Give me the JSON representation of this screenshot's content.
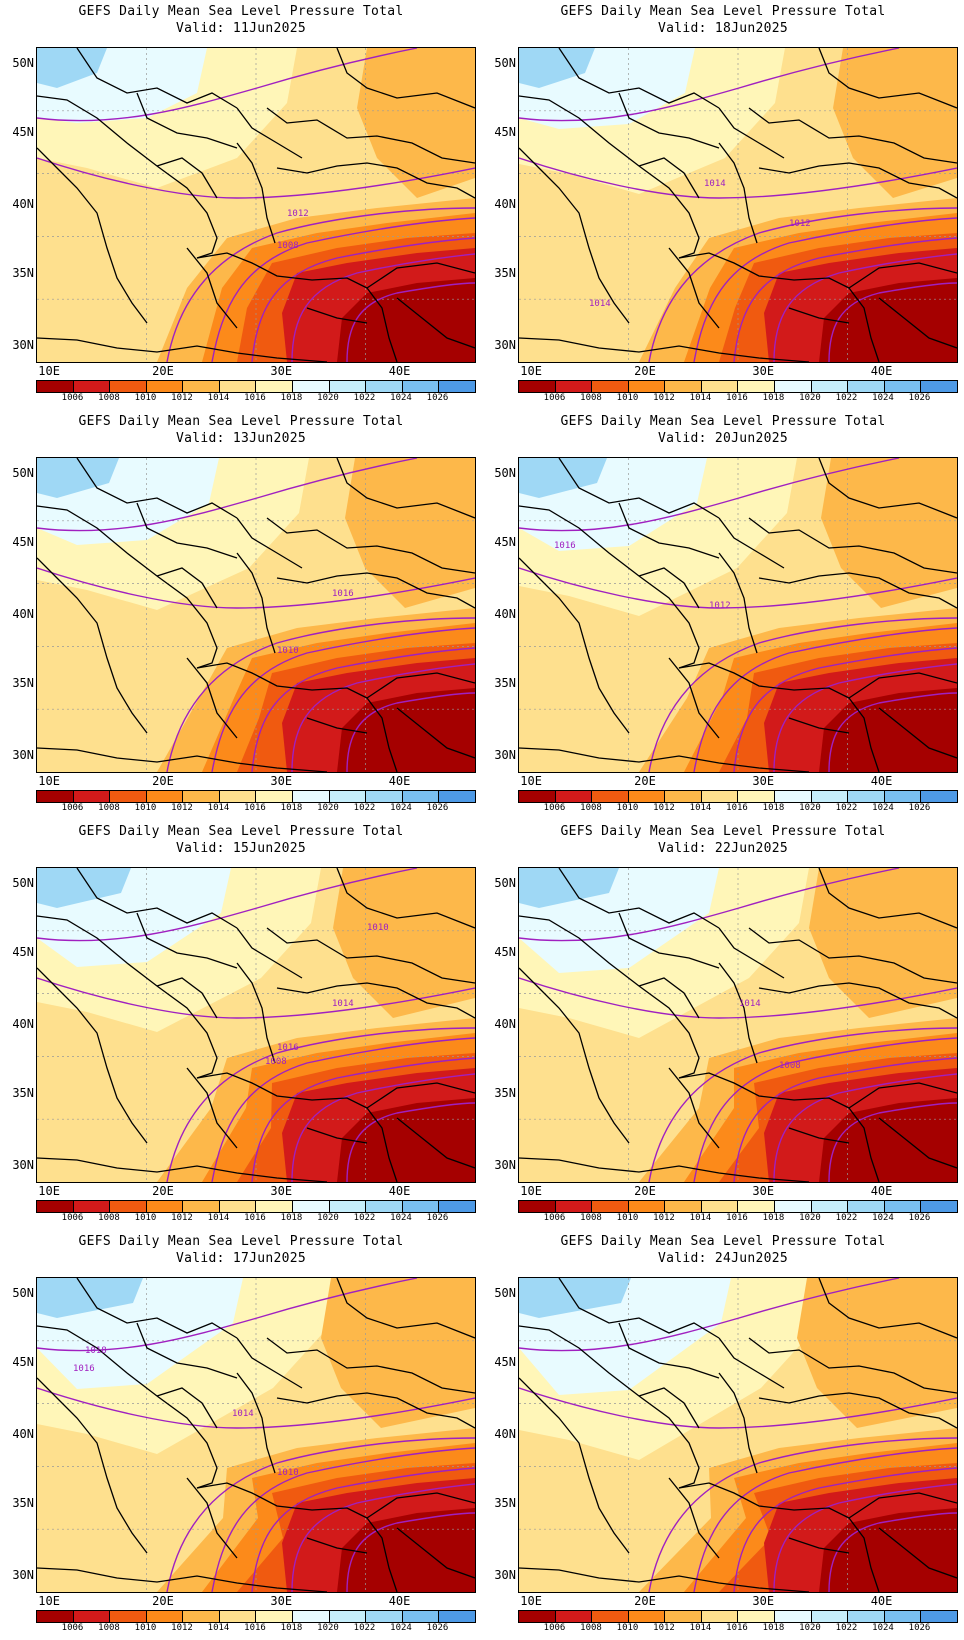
{
  "title_line": "GEFS Daily Mean Sea Level Pressure Total",
  "valid_prefix": "Valid:",
  "lat_labels": [
    "50N",
    "45N",
    "40N",
    "35N",
    "30N"
  ],
  "lon_labels": [
    "10E",
    "20E",
    "30E",
    "40E"
  ],
  "colorbar": {
    "labels": [
      "1006",
      "1008",
      "1010",
      "1012",
      "1014",
      "1016",
      "1018",
      "1020",
      "1022",
      "1024",
      "1026"
    ],
    "colors": [
      "#a50000",
      "#d21a1a",
      "#f05a10",
      "#fc8a1a",
      "#fdb84a",
      "#fee08e",
      "#fff6b8",
      "#e8fbff",
      "#c6eefb",
      "#9fd8f5",
      "#79bff0",
      "#4e9ae6"
    ]
  },
  "panels": [
    {
      "valid": "11Jun2025",
      "shift": 0,
      "contour_labels": [
        {
          "text": "1012",
          "x": 250,
          "y": 168
        },
        {
          "text": "1008",
          "x": 240,
          "y": 200
        }
      ]
    },
    {
      "valid": "18Jun2025",
      "shift": 1,
      "contour_labels": [
        {
          "text": "1014",
          "x": 185,
          "y": 138
        },
        {
          "text": "1012",
          "x": 270,
          "y": 178
        },
        {
          "text": "1014",
          "x": 70,
          "y": 258
        }
      ]
    },
    {
      "valid": "13Jun2025",
      "shift": 2,
      "contour_labels": [
        {
          "text": "1016",
          "x": 295,
          "y": 138
        },
        {
          "text": "1010",
          "x": 240,
          "y": 195
        }
      ]
    },
    {
      "valid": "20Jun2025",
      "shift": 3,
      "contour_labels": [
        {
          "text": "1016",
          "x": 35,
          "y": 90
        },
        {
          "text": "1012",
          "x": 190,
          "y": 150
        }
      ]
    },
    {
      "valid": "15Jun2025",
      "shift": 4,
      "contour_labels": [
        {
          "text": "1010",
          "x": 330,
          "y": 62
        },
        {
          "text": "1014",
          "x": 295,
          "y": 138
        },
        {
          "text": "1016",
          "x": 240,
          "y": 182
        },
        {
          "text": "1008",
          "x": 228,
          "y": 196
        }
      ]
    },
    {
      "valid": "22Jun2025",
      "shift": 5,
      "contour_labels": [
        {
          "text": "1014",
          "x": 220,
          "y": 138
        },
        {
          "text": "1008",
          "x": 260,
          "y": 200
        }
      ]
    },
    {
      "valid": "17Jun2025",
      "shift": 6,
      "contour_labels": [
        {
          "text": "1018",
          "x": 48,
          "y": 75
        },
        {
          "text": "1016",
          "x": 36,
          "y": 93
        },
        {
          "text": "1014",
          "x": 195,
          "y": 138
        },
        {
          "text": "1010",
          "x": 240,
          "y": 197
        }
      ]
    },
    {
      "valid": "24Jun2025",
      "shift": 7,
      "contour_labels": []
    }
  ]
}
